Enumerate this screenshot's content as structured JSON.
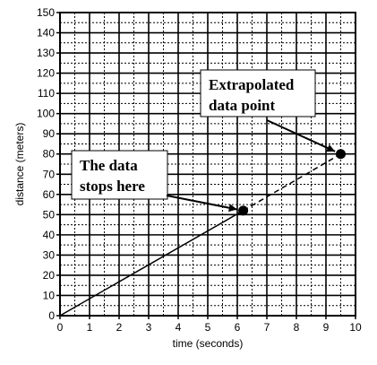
{
  "chart_data": {
    "type": "line",
    "title": "",
    "xlabel": "time (seconds)",
    "ylabel": "distance (meters)",
    "xlim": [
      0,
      10
    ],
    "ylim": [
      0,
      150
    ],
    "x_ticks": [
      0,
      1,
      2,
      3,
      4,
      5,
      6,
      7,
      8,
      9,
      10
    ],
    "y_ticks": [
      0,
      10,
      20,
      30,
      40,
      50,
      60,
      70,
      80,
      90,
      100,
      110,
      120,
      130,
      140,
      150
    ],
    "x_tick_labels": [
      "0",
      "1",
      "2",
      "3",
      "4",
      "5",
      "6",
      "7",
      "8",
      "9",
      "10"
    ],
    "y_tick_labels": [
      "0",
      "10",
      "20",
      "30",
      "40",
      "50",
      "60",
      "70",
      "80",
      "90",
      "100",
      "110",
      "120",
      "130",
      "140",
      "150"
    ],
    "grid": "on",
    "x_minor_step": 0.5,
    "y_minor_step": 5,
    "series": [
      {
        "style": "solid",
        "x": [
          0,
          6.2
        ],
        "y": [
          0,
          52
        ]
      },
      {
        "style": "dashed",
        "x": [
          6.2,
          9.5
        ],
        "y": [
          52,
          80
        ]
      }
    ],
    "points": [
      {
        "x": 6.2,
        "y": 52
      },
      {
        "x": 9.5,
        "y": 80
      }
    ],
    "annotations": [
      {
        "lines": [
          "The data",
          "stops here"
        ],
        "target": {
          "x": 6.2,
          "y": 52
        }
      },
      {
        "lines": [
          "Extrapolated",
          "data point"
        ],
        "target": {
          "x": 9.5,
          "y": 80
        }
      }
    ],
    "colors": {
      "line": "#000000",
      "grid": "#000000",
      "background": "#ffffff"
    }
  }
}
